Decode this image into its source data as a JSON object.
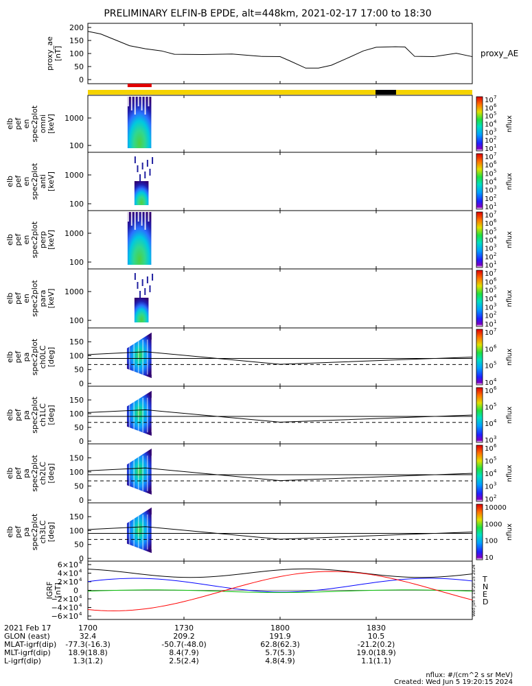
{
  "title": "PRELIMINARY ELFIN-B EPDE, alt=448km, 2021-02-17 17:00 to 18:30",
  "chart_data": [
    {
      "id": "ae",
      "type": "line",
      "ylabel_lines": [
        "proxy_ae",
        "[nT]"
      ],
      "yticks": [
        "200",
        "150",
        "100",
        "50",
        "0"
      ],
      "ylim": [
        0,
        200
      ],
      "series_label": "proxy_AE",
      "x_minutes": [
        0,
        4,
        9,
        13,
        18,
        23,
        27,
        36,
        45,
        54,
        60,
        63,
        68,
        72,
        76,
        81,
        86,
        90,
        96,
        99,
        102,
        108,
        115,
        120
      ],
      "values": [
        185,
        175,
        150,
        130,
        118,
        110,
        97,
        96,
        98,
        89,
        88,
        72,
        44,
        44,
        55,
        82,
        110,
        124,
        126,
        125,
        89,
        88,
        101,
        88
      ]
    },
    {
      "id": "bars",
      "type": "bar",
      "segments": [
        {
          "start_min": 0,
          "end_min": 120,
          "color": "#f5d300"
        },
        {
          "start_min": 12.4,
          "end_min": 19.9,
          "color": "#e00000"
        },
        {
          "start_min": 89.8,
          "end_min": 96.2,
          "color": "#000000"
        }
      ]
    },
    {
      "id": "omni",
      "type": "heatmap",
      "ylabel_lines": [
        "elb",
        "pef",
        "en",
        "spec2plot",
        "omni",
        "[keV]"
      ],
      "yticks": [
        "1000",
        "100"
      ],
      "cbar_labels": [
        "10",
        "10",
        "10",
        "10",
        "10",
        "10",
        "10"
      ],
      "cbar_exps": [
        "7",
        "6",
        "5",
        "4",
        "3",
        "2",
        "1"
      ],
      "cbar_title": "nflux"
    },
    {
      "id": "anti",
      "type": "heatmap",
      "ylabel_lines": [
        "elb",
        "pef",
        "en",
        "spec2plot",
        "anti",
        "[keV]"
      ],
      "yticks": [
        "1000",
        "100"
      ],
      "cbar_labels": [
        "10",
        "10",
        "10",
        "10",
        "10",
        "10",
        "10"
      ],
      "cbar_exps": [
        "7",
        "6",
        "5",
        "4",
        "3",
        "2",
        "1"
      ],
      "cbar_title": "nflux"
    },
    {
      "id": "perp",
      "type": "heatmap",
      "ylabel_lines": [
        "elb",
        "pef",
        "en",
        "spec2plot",
        "perp",
        "[keV]"
      ],
      "yticks": [
        "1000",
        "100"
      ],
      "cbar_labels": [
        "10",
        "10",
        "10",
        "10",
        "10",
        "10",
        "10"
      ],
      "cbar_exps": [
        "7",
        "6",
        "5",
        "4",
        "3",
        "2",
        "1"
      ],
      "cbar_title": "nflux"
    },
    {
      "id": "para",
      "type": "heatmap",
      "ylabel_lines": [
        "elb",
        "pef",
        "en",
        "spec2plot",
        "para",
        "[keV]"
      ],
      "yticks": [
        "1000",
        "100"
      ],
      "cbar_labels": [
        "10",
        "10",
        "10",
        "10",
        "10",
        "10",
        "10"
      ],
      "cbar_exps": [
        "7",
        "6",
        "5",
        "4",
        "3",
        "2",
        "1"
      ],
      "cbar_title": "nflux"
    },
    {
      "id": "ch0",
      "type": "heatmap",
      "ylabel_lines": [
        "elb",
        "pef",
        "pa",
        "spec2plot",
        "ch0LC",
        "[deg]"
      ],
      "yticks": [
        "150",
        "100",
        "50",
        "0"
      ],
      "cbar_labels": [
        "10",
        "10",
        "10",
        "10"
      ],
      "cbar_exps": [
        "7",
        "6",
        "5",
        "4"
      ],
      "cbar_title": "nflux"
    },
    {
      "id": "ch1",
      "type": "heatmap",
      "ylabel_lines": [
        "elb",
        "pef",
        "pa",
        "spec2plot",
        "ch1LC",
        "[deg]"
      ],
      "yticks": [
        "150",
        "100",
        "50",
        "0"
      ],
      "cbar_labels": [
        "10",
        "10",
        "10",
        "10"
      ],
      "cbar_exps": [
        "6",
        "5",
        "4",
        "3"
      ],
      "cbar_title": "nflux"
    },
    {
      "id": "ch2",
      "type": "heatmap",
      "ylabel_lines": [
        "elb",
        "pef",
        "pa",
        "spec2plot",
        "ch2LC",
        "[deg]"
      ],
      "yticks": [
        "150",
        "100",
        "50",
        "0"
      ],
      "cbar_labels": [
        "10",
        "10",
        "10",
        "10",
        "10"
      ],
      "cbar_exps": [
        "6",
        "5",
        "4",
        "3",
        "2"
      ],
      "cbar_title": "nflux"
    },
    {
      "id": "ch3",
      "type": "heatmap",
      "ylabel_lines": [
        "elb",
        "pef",
        "pa",
        "spec2plot",
        "ch3LC",
        "[deg]"
      ],
      "yticks": [
        "150",
        "100",
        "50",
        "0"
      ],
      "cbar_labels": [
        "10000",
        "1000",
        "100",
        "10"
      ],
      "cbar_exps": [
        "",
        "",
        "",
        ""
      ],
      "cbar_title": "nflux"
    },
    {
      "id": "igrf",
      "type": "line",
      "ylabel_lines": [
        "IGRF",
        "[nT]"
      ],
      "yticks": [
        "6×10",
        "4×10",
        "2×10",
        "0",
        "−2×10",
        "−4×10",
        "−6×10"
      ],
      "ytick_exps": [
        "4",
        "4",
        "4",
        "",
        "4",
        "4",
        "4"
      ],
      "ylim": [
        -60000,
        60000
      ],
      "legend": [
        {
          "label": "T",
          "color": "#000000"
        },
        {
          "label": "N",
          "color": "#0000ff"
        },
        {
          "label": "E",
          "color": "#00c000"
        },
        {
          "label": "D",
          "color": "#ff0000"
        }
      ],
      "side_text": "Wed Jun  5 19:20:15 2024"
    }
  ],
  "limb_lines": {
    "x_minutes": [
      0,
      18,
      60,
      120
    ],
    "solid_deg": [
      104,
      114,
      69,
      95
    ],
    "mirror_deg": [
      76,
      66,
      111,
      85
    ],
    "dashed_deg": 68
  },
  "xaxis": {
    "ticks": [
      {
        "min": 0,
        "rows": [
          "1700",
          "32.4",
          "-77.3(-16.3)",
          "18.9(18.8)",
          "1.3(1.2)"
        ]
      },
      {
        "min": 30,
        "rows": [
          "1730",
          "209.2",
          "-50.7(-48.0)",
          "8.4(7.9)",
          "2.5(2.4)"
        ]
      },
      {
        "min": 60,
        "rows": [
          "1800",
          "191.9",
          "62.8(62.3)",
          "5.7(5.3)",
          "4.8(4.9)"
        ]
      },
      {
        "min": 90,
        "rows": [
          "1830",
          "10.5",
          "-21.2(0.2)",
          "19.0(18.9)",
          "1.1(1.1)"
        ]
      }
    ],
    "row_labels": [
      "2021 Feb 17",
      "GLON (east)",
      "MLAT-igrf(dip)",
      "MLT-igrf(dip)",
      "L-igrf(dip)"
    ]
  },
  "footer": {
    "units": "nflux: #/(cm^2 s sr MeV)",
    "created": "Created: Wed Jun  5 19:20:15 2024"
  }
}
